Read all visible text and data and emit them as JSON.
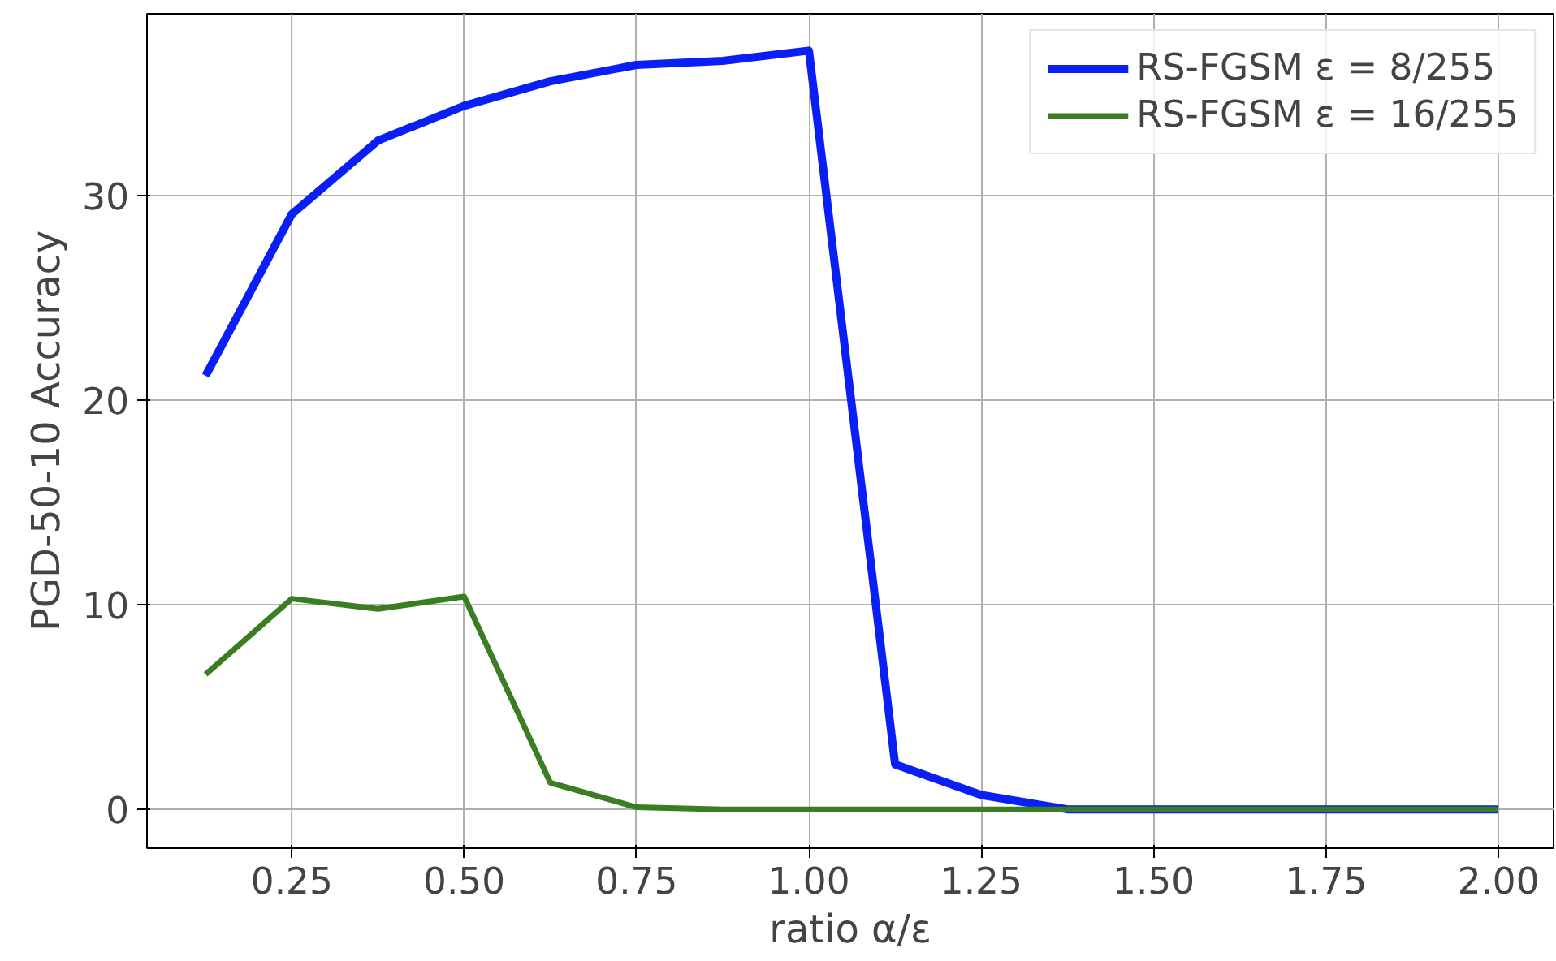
{
  "chart_data": {
    "type": "line",
    "xlabel": "ratio α/ε",
    "ylabel": "PGD-50-10 Accuracy",
    "x": [
      0.125,
      0.25,
      0.375,
      0.5,
      0.625,
      0.75,
      0.875,
      1.0,
      1.125,
      1.25,
      1.375,
      1.5,
      1.625,
      1.75,
      1.875,
      2.0
    ],
    "series": [
      {
        "name": "RS-FGSM ε = 8/255",
        "color": "#0a1ff5",
        "values": [
          21.2,
          29.1,
          32.7,
          34.4,
          35.6,
          36.4,
          36.6,
          37.1,
          2.2,
          0.7,
          0,
          0,
          0,
          0,
          0,
          0
        ]
      },
      {
        "name": "RS-FGSM ε = 16/255",
        "color": "#3a7d22",
        "values": [
          6.6,
          10.3,
          9.8,
          10.4,
          1.3,
          0.1,
          0,
          0,
          0,
          0,
          0,
          0,
          0,
          0,
          0,
          0
        ]
      }
    ],
    "xlim": [
      0.04,
      2.08
    ],
    "ylim": [
      -1.9,
      38.9
    ],
    "xticks": [
      {
        "value": 0.25,
        "label": "0.25"
      },
      {
        "value": 0.5,
        "label": "0.50"
      },
      {
        "value": 0.75,
        "label": "0.75"
      },
      {
        "value": 1.0,
        "label": "1.00"
      },
      {
        "value": 1.25,
        "label": "1.25"
      },
      {
        "value": 1.5,
        "label": "1.50"
      },
      {
        "value": 1.75,
        "label": "1.75"
      },
      {
        "value": 2.0,
        "label": "2.00"
      }
    ],
    "yticks": [
      0,
      10,
      20,
      30
    ],
    "grid": true,
    "legend": "top right",
    "line_style": "solid",
    "marker": "none"
  }
}
